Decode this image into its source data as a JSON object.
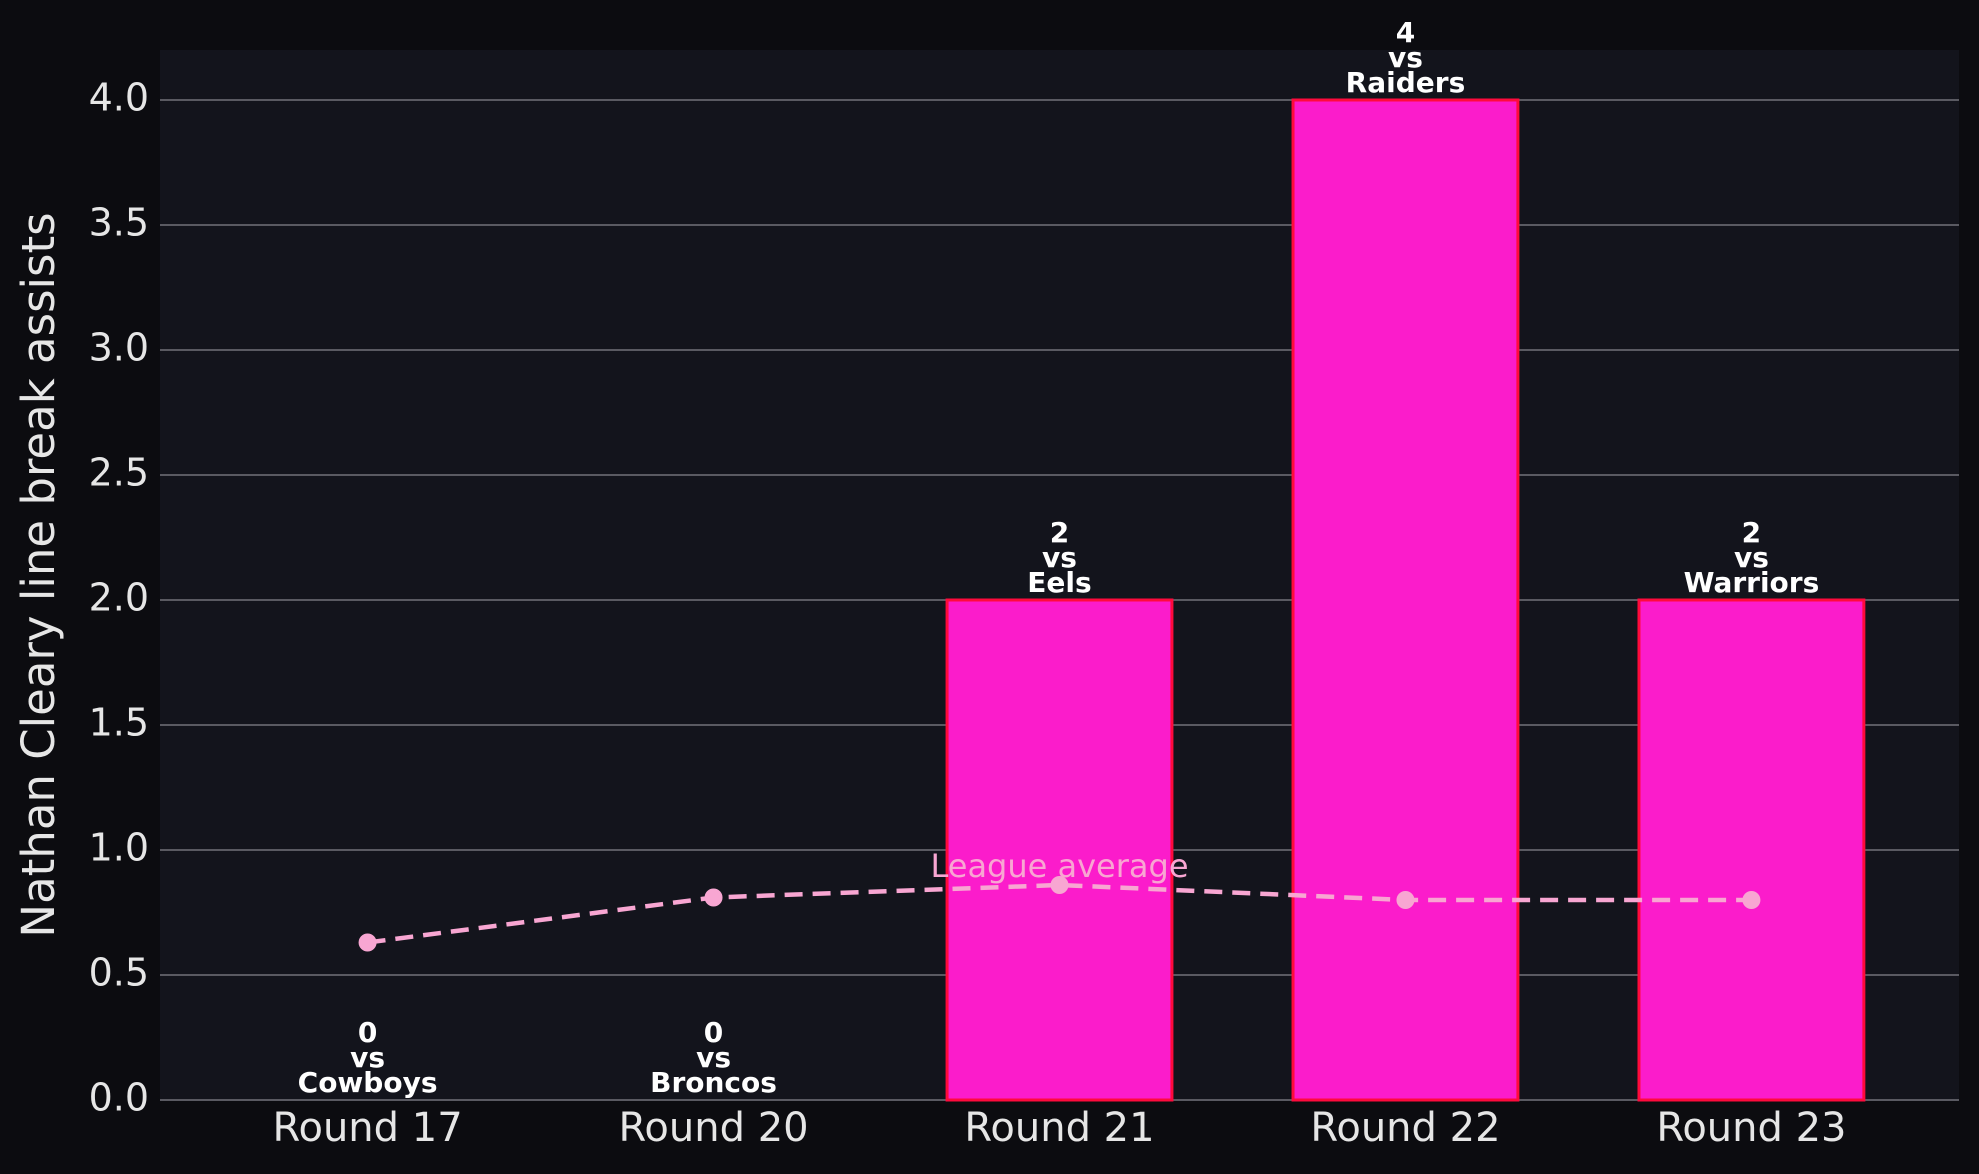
{
  "chart_data": {
    "type": "bar",
    "y_label": "Nathan Cleary line break assists",
    "categories": [
      "Round 17",
      "Round 20",
      "Round 21",
      "Round 22",
      "Round 23"
    ],
    "values": [
      0,
      0,
      2,
      4,
      2
    ],
    "opponents": [
      "Cowboys",
      "Broncos",
      "Eels",
      "Raiders",
      "Warriors"
    ],
    "label_connector": "vs",
    "color": "#fb1ccb",
    "edge_color": "#ff0a3c",
    "reference_line": {
      "label": "League average",
      "values": [
        0.63,
        0.81,
        0.86,
        0.8,
        0.8
      ],
      "color": "#f8a6d2"
    },
    "ylim": [
      0,
      4.2
    ],
    "yticks": [
      {
        "value": 0,
        "label": "0.0"
      },
      0.5,
      {
        "value": 1,
        "label": "1.0"
      },
      1.5,
      {
        "value": 2,
        "label": "2.0"
      },
      2.5,
      {
        "value": 3,
        "label": "3.0"
      },
      3.5,
      {
        "value": 4,
        "label": "4.0"
      }
    ],
    "grid": true
  }
}
